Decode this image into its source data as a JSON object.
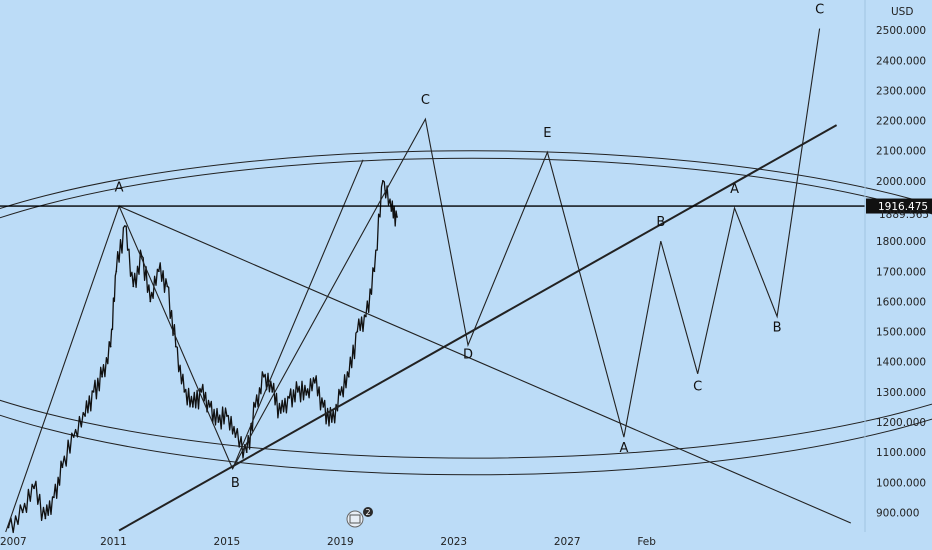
{
  "app": {
    "currency": "USD",
    "watermark_badge": "2"
  },
  "chart_data": {
    "type": "line",
    "title": "",
    "currency_label": "USD",
    "y_ticks": [
      2500,
      2400,
      2300,
      2200,
      2100,
      2000,
      1800,
      1700,
      1600,
      1500,
      1400,
      1300,
      1200,
      1100,
      1000,
      900
    ],
    "y_tick_labels": [
      "2500.000",
      "2400.000",
      "2300.000",
      "2200.000",
      "2100.000",
      "2000.000",
      "1800.000",
      "1700.000",
      "1600.000",
      "1500.000",
      "1400.000",
      "1300.000",
      "1200.000",
      "1100.000",
      "1000.000",
      "900.000"
    ],
    "ylim": [
      835,
      2600
    ],
    "xlim": [
      2007,
      2037.5
    ],
    "x_ticks": [
      2007,
      2011,
      2015,
      2019,
      2023,
      2027,
      2029.8
    ],
    "x_tick_labels": [
      "2007",
      "2011",
      "2015",
      "2019",
      "2023",
      "2027",
      "Feb"
    ],
    "current_price": {
      "value": 1916.475,
      "label": "1916.475"
    },
    "secondary_price": {
      "value": 1889.565,
      "label": "1889.565"
    },
    "horizontal_level": 1916.475,
    "price_series": {
      "name": "",
      "x": [
        2007.3,
        2007.8,
        2008.2,
        2008.6,
        2008.9,
        2009.2,
        2009.6,
        2010.0,
        2010.3,
        2010.6,
        2010.9,
        2011.1,
        2011.4,
        2011.7,
        2012.0,
        2012.3,
        2012.6,
        2012.9,
        2013.2,
        2013.5,
        2013.8,
        2014.1,
        2014.4,
        2014.7,
        2015.0,
        2015.3,
        2015.7,
        2016.0,
        2016.3,
        2016.6,
        2016.9,
        2017.2,
        2017.5,
        2017.8,
        2018.1,
        2018.4,
        2018.7,
        2019.0,
        2019.3,
        2019.6,
        2019.9,
        2020.2,
        2020.5,
        2020.8,
        2021.0
      ],
      "y": [
        850,
        900,
        980,
        880,
        950,
        1050,
        1150,
        1220,
        1300,
        1350,
        1450,
        1700,
        1850,
        1650,
        1750,
        1600,
        1700,
        1650,
        1450,
        1300,
        1250,
        1300,
        1250,
        1200,
        1220,
        1150,
        1100,
        1250,
        1350,
        1300,
        1230,
        1280,
        1300,
        1290,
        1330,
        1250,
        1200,
        1290,
        1350,
        1500,
        1550,
        1700,
        2000,
        1900,
        1880
      ]
    },
    "wave_lines": [
      {
        "x": [
          2007.2,
          2011.2,
          2015.2,
          2022.0,
          2023.5,
          2026.3,
          2029.0,
          2030.3,
          2031.6,
          2032.9,
          2034.4,
          2035.9
        ],
        "y": [
          835,
          1916,
          1045,
          2205,
          1455,
          2095,
          1150,
          1800,
          1360,
          1910,
          1550,
          2505
        ]
      },
      {
        "x": [
          2011.2,
          2037.0
        ],
        "y": [
          1916,
          865
        ]
      },
      {
        "x": [
          2011.2,
          2036.5
        ],
        "y": [
          840,
          2185
        ]
      },
      {
        "x": [
          2015.2,
          2019.8
        ],
        "y": [
          1045,
          2070
        ]
      }
    ],
    "ellipses": [
      {
        "center": [
          2023.65,
          1550
        ],
        "rx_years": 21.3,
        "ry": 525
      },
      {
        "center": [
          2023.65,
          1590
        ],
        "rx_years": 21.3,
        "ry": 510
      }
    ],
    "wave_labels": [
      {
        "text": "A",
        "x": 2011.2,
        "y": 1965
      },
      {
        "text": "B",
        "x": 2015.3,
        "y": 985
      },
      {
        "text": "C",
        "x": 2022.0,
        "y": 2255
      },
      {
        "text": "D",
        "x": 2023.5,
        "y": 1410
      },
      {
        "text": "E",
        "x": 2026.3,
        "y": 2145
      },
      {
        "text": "A",
        "x": 2029.0,
        "y": 1100
      },
      {
        "text": "B",
        "x": 2030.3,
        "y": 1850
      },
      {
        "text": "C",
        "x": 2031.6,
        "y": 1305
      },
      {
        "text": "A",
        "x": 2032.9,
        "y": 1960
      },
      {
        "text": "B",
        "x": 2034.4,
        "y": 1500
      },
      {
        "text": "C",
        "x": 2035.9,
        "y": 2555
      }
    ],
    "grid": false,
    "colors": {
      "background": "#bcdcf7",
      "lines": "#222222",
      "axis_text": "#222222",
      "price_tag_bg": "#111111",
      "price_tag_text": "#ffffff"
    }
  }
}
